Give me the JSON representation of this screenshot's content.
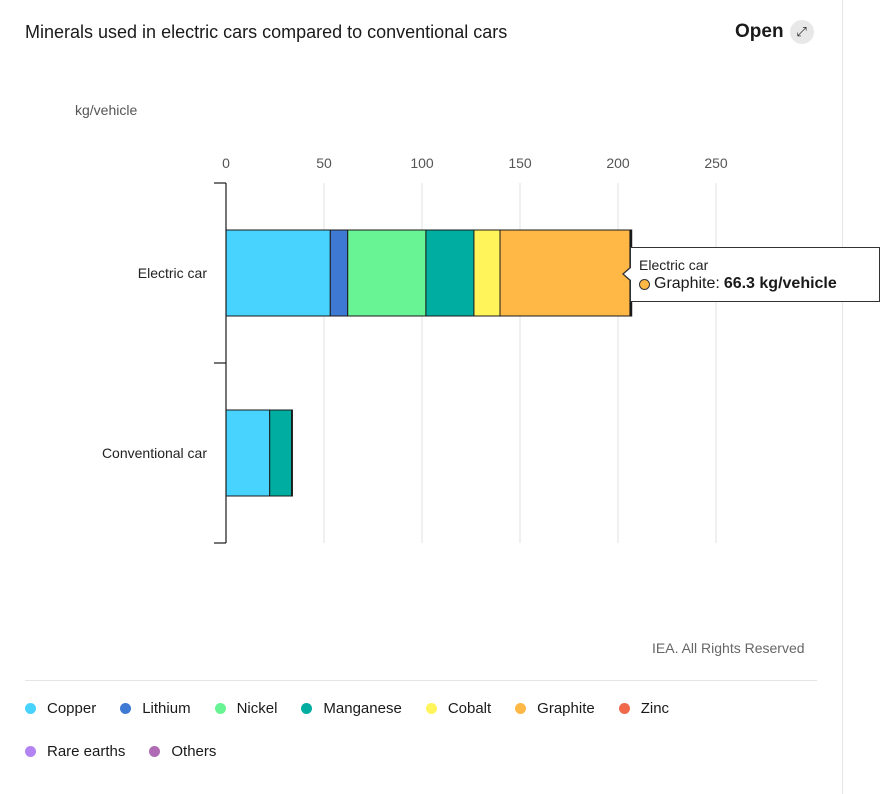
{
  "header": {
    "title": "Minerals used in electric cars compared to conventional cars",
    "open_label": "Open",
    "open_icon": "expand-arrows-icon"
  },
  "credit": "IEA. All Rights Reserved",
  "tooltip": {
    "category": "Electric car",
    "series": "Graphite: ",
    "value": "66.3 kg/vehicle",
    "color": "#ffb846"
  },
  "chart_data": {
    "type": "bar",
    "orientation": "horizontal",
    "stacked": true,
    "ylabel": "kg/vehicle",
    "xlim": [
      0,
      250
    ],
    "x_ticks": [
      0,
      50,
      100,
      150,
      200,
      250
    ],
    "grid": true,
    "legend_position": "bottom",
    "categories": [
      "Electric car",
      "Conventional car"
    ],
    "series": [
      {
        "name": "Copper",
        "color": "#48d3ff",
        "values": [
          53.2,
          22.3
        ]
      },
      {
        "name": "Lithium",
        "color": "#3e7ad3",
        "values": [
          8.9,
          0
        ]
      },
      {
        "name": "Nickel",
        "color": "#68f394",
        "values": [
          39.9,
          0
        ]
      },
      {
        "name": "Manganese",
        "color": "#00ada1",
        "values": [
          24.5,
          11.2
        ]
      },
      {
        "name": "Cobalt",
        "color": "#fff45a",
        "values": [
          13.3,
          0
        ]
      },
      {
        "name": "Graphite",
        "color": "#ffb846",
        "values": [
          66.3,
          0
        ]
      },
      {
        "name": "Zinc",
        "color": "#f1694b",
        "values": [
          0.1,
          0.1
        ]
      },
      {
        "name": "Rare earths",
        "color": "#b283f1",
        "values": [
          0.5,
          0
        ]
      },
      {
        "name": "Others",
        "color": "#b06bb5",
        "values": [
          0.3,
          0.3
        ]
      }
    ]
  }
}
